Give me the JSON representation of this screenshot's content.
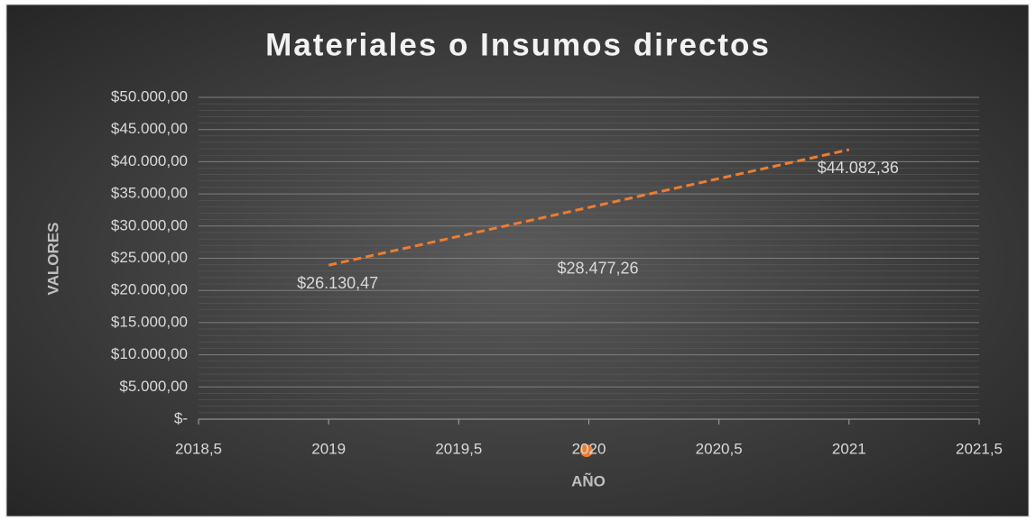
{
  "chart_data": {
    "type": "scatter",
    "title": "Materiales o Insumos directos",
    "x_label": "AÑO",
    "y_label": "VALORES",
    "x": [
      2019,
      2020,
      2021
    ],
    "values": [
      26130.47,
      28477.26,
      44082.36
    ],
    "value_labels": [
      "$26.130,47",
      "$28.477,26",
      "$44.082,36"
    ],
    "color": "#ed7d31",
    "trendline": "linear",
    "grid": true,
    "xlim": [
      2018.5,
      2021.5
    ],
    "xticks": [
      {
        "value": 2018.5,
        "label": "2018,5"
      },
      2019,
      {
        "value": 2019.5,
        "label": "2019,5"
      },
      2020,
      {
        "value": 2020.5,
        "label": "2020,5"
      },
      2021,
      {
        "value": 2021.5,
        "label": "2021,5"
      }
    ],
    "ylim": [
      0,
      50000
    ],
    "yticks": [
      {
        "value": 0,
        "label": "$-"
      },
      {
        "value": 5000,
        "label": "$5.000,00"
      },
      {
        "value": 10000,
        "label": "$10.000,00"
      },
      {
        "value": 15000,
        "label": "$15.000,00"
      },
      {
        "value": 20000,
        "label": "$20.000,00"
      },
      {
        "value": 25000,
        "label": "$25.000,00"
      },
      {
        "value": 30000,
        "label": "$30.000,00"
      },
      {
        "value": 35000,
        "label": "$35.000,00"
      },
      {
        "value": 40000,
        "label": "$40.000,00"
      },
      {
        "value": 45000,
        "label": "$45.000,00"
      },
      {
        "value": 50000,
        "label": "$50.000,00"
      }
    ]
  }
}
